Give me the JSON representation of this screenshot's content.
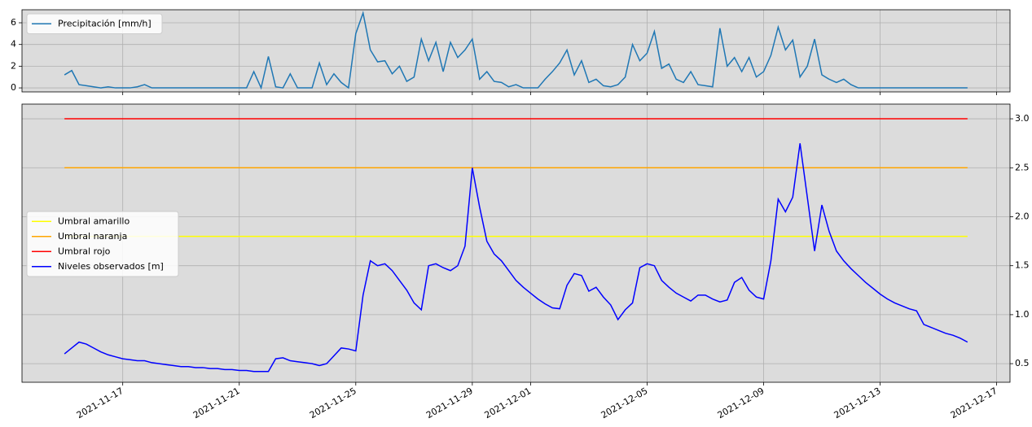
{
  "chart_data": [
    {
      "type": "line",
      "x": [
        "2021-11-15 00:00",
        "2021-11-15 06:00",
        "2021-11-15 12:00",
        "2021-11-15 18:00",
        "2021-11-16 00:00",
        "2021-11-16 06:00",
        "2021-11-16 12:00",
        "2021-11-16 18:00",
        "2021-11-17 00:00",
        "2021-11-17 06:00",
        "2021-11-17 12:00",
        "2021-11-17 18:00",
        "2021-11-18 00:00",
        "2021-11-18 06:00",
        "2021-11-18 12:00",
        "2021-11-18 18:00",
        "2021-11-19 00:00",
        "2021-11-19 06:00",
        "2021-11-19 12:00",
        "2021-11-19 18:00",
        "2021-11-20 00:00",
        "2021-11-20 06:00",
        "2021-11-20 12:00",
        "2021-11-20 18:00",
        "2021-11-21 00:00",
        "2021-11-21 06:00",
        "2021-11-21 12:00",
        "2021-11-21 18:00",
        "2021-11-22 00:00",
        "2021-11-22 06:00",
        "2021-11-22 12:00",
        "2021-11-22 18:00",
        "2021-11-23 00:00",
        "2021-11-23 06:00",
        "2021-11-23 12:00",
        "2021-11-23 18:00",
        "2021-11-24 00:00",
        "2021-11-24 06:00",
        "2021-11-24 12:00",
        "2021-11-24 18:00",
        "2021-11-25 00:00",
        "2021-11-25 06:00",
        "2021-11-25 12:00",
        "2021-11-25 18:00",
        "2021-11-26 00:00",
        "2021-11-26 06:00",
        "2021-11-26 12:00",
        "2021-11-26 18:00",
        "2021-11-27 00:00",
        "2021-11-27 06:00",
        "2021-11-27 12:00",
        "2021-11-27 18:00",
        "2021-11-28 00:00",
        "2021-11-28 06:00",
        "2021-11-28 12:00",
        "2021-11-28 18:00",
        "2021-11-29 00:00",
        "2021-11-29 06:00",
        "2021-11-29 12:00",
        "2021-11-29 18:00",
        "2021-11-30 00:00",
        "2021-11-30 06:00",
        "2021-11-30 12:00",
        "2021-11-30 18:00",
        "2021-12-01 00:00",
        "2021-12-01 06:00",
        "2021-12-01 12:00",
        "2021-12-01 18:00",
        "2021-12-02 00:00",
        "2021-12-02 06:00",
        "2021-12-02 12:00",
        "2021-12-02 18:00",
        "2021-12-03 00:00",
        "2021-12-03 06:00",
        "2021-12-03 12:00",
        "2021-12-03 18:00",
        "2021-12-04 00:00",
        "2021-12-04 06:00",
        "2021-12-04 12:00",
        "2021-12-04 18:00",
        "2021-12-05 00:00",
        "2021-12-05 06:00",
        "2021-12-05 12:00",
        "2021-12-05 18:00",
        "2021-12-06 00:00",
        "2021-12-06 06:00",
        "2021-12-06 12:00",
        "2021-12-06 18:00",
        "2021-12-07 00:00",
        "2021-12-07 06:00",
        "2021-12-07 12:00",
        "2021-12-07 18:00",
        "2021-12-08 00:00",
        "2021-12-08 06:00",
        "2021-12-08 12:00",
        "2021-12-08 18:00",
        "2021-12-09 00:00",
        "2021-12-09 06:00",
        "2021-12-09 12:00",
        "2021-12-09 18:00",
        "2021-12-10 00:00",
        "2021-12-10 06:00",
        "2021-12-10 12:00",
        "2021-12-10 18:00",
        "2021-12-11 00:00",
        "2021-12-11 06:00",
        "2021-12-11 12:00",
        "2021-12-11 18:00",
        "2021-12-12 00:00",
        "2021-12-12 06:00",
        "2021-12-12 12:00",
        "2021-12-12 18:00",
        "2021-12-13 00:00",
        "2021-12-13 06:00",
        "2021-12-13 12:00",
        "2021-12-13 18:00",
        "2021-12-14 00:00",
        "2021-12-14 06:00",
        "2021-12-14 12:00",
        "2021-12-14 18:00",
        "2021-12-15 00:00",
        "2021-12-15 06:00",
        "2021-12-15 12:00",
        "2021-12-15 18:00",
        "2021-12-16 00:00"
      ],
      "series": [
        {
          "name": "Precipitación [mm/h]",
          "color": "#1f77b4",
          "values": [
            1.2,
            1.6,
            0.3,
            0.2,
            0.1,
            0,
            0.1,
            0,
            0,
            0,
            0.1,
            0.3,
            0,
            0,
            0,
            0,
            0,
            0,
            0,
            0,
            0,
            0,
            0,
            0,
            0,
            0,
            1.5,
            0,
            2.9,
            0.1,
            0,
            1.3,
            0,
            0,
            0,
            2.3,
            0.3,
            1.3,
            0.5,
            0,
            5,
            6.9,
            3.5,
            2.4,
            2.5,
            1.3,
            2,
            0.6,
            1,
            4.5,
            2.5,
            4.2,
            1.5,
            4.2,
            2.8,
            3.5,
            4.5,
            0.8,
            1.5,
            0.6,
            0.5,
            0.1,
            0.3,
            0,
            0,
            0,
            0.8,
            1.5,
            2.3,
            3.5,
            1.2,
            2.5,
            0.5,
            0.8,
            0.2,
            0.1,
            0.3,
            1,
            4,
            2.5,
            3.2,
            5.2,
            1.8,
            2.2,
            0.8,
            0.5,
            1.5,
            0.3,
            0.2,
            0.1,
            5.5,
            2,
            2.8,
            1.5,
            2.8,
            1,
            1.5,
            3,
            5.6,
            3.5,
            4.4,
            1,
            2,
            4.5,
            1.2,
            0.8,
            0.5,
            0.8,
            0.3,
            0,
            0,
            0,
            0,
            0,
            0,
            0,
            0,
            0,
            0,
            0,
            0,
            0,
            0,
            0,
            0
          ]
        }
      ],
      "xlim": [
        "2021-11-13 13:00",
        "2021-12-17 11:00"
      ],
      "xticks": [
        "2021-11-17",
        "2021-11-21",
        "2021-11-25",
        "2021-11-29",
        "2021-12-01",
        "2021-12-05",
        "2021-12-09",
        "2021-12-13",
        "2021-12-17"
      ],
      "xtick_labels": false,
      "ylim": [
        -0.37,
        7.2
      ],
      "yticks": [
        0,
        2,
        4,
        6
      ],
      "y_side": "left",
      "grid": true,
      "legend": "upper left",
      "background": "#dcdcdc"
    },
    {
      "type": "line",
      "x": [
        "2021-11-15 00:00",
        "2021-11-15 06:00",
        "2021-11-15 12:00",
        "2021-11-15 18:00",
        "2021-11-16 00:00",
        "2021-11-16 06:00",
        "2021-11-16 12:00",
        "2021-11-16 18:00",
        "2021-11-17 00:00",
        "2021-11-17 06:00",
        "2021-11-17 12:00",
        "2021-11-17 18:00",
        "2021-11-18 00:00",
        "2021-11-18 06:00",
        "2021-11-18 12:00",
        "2021-11-18 18:00",
        "2021-11-19 00:00",
        "2021-11-19 06:00",
        "2021-11-19 12:00",
        "2021-11-19 18:00",
        "2021-11-20 00:00",
        "2021-11-20 06:00",
        "2021-11-20 12:00",
        "2021-11-20 18:00",
        "2021-11-21 00:00",
        "2021-11-21 06:00",
        "2021-11-21 12:00",
        "2021-11-21 18:00",
        "2021-11-22 00:00",
        "2021-11-22 06:00",
        "2021-11-22 12:00",
        "2021-11-22 18:00",
        "2021-11-23 00:00",
        "2021-11-23 06:00",
        "2021-11-23 12:00",
        "2021-11-23 18:00",
        "2021-11-24 00:00",
        "2021-11-24 06:00",
        "2021-11-24 12:00",
        "2021-11-24 18:00",
        "2021-11-25 00:00",
        "2021-11-25 06:00",
        "2021-11-25 12:00",
        "2021-11-25 18:00",
        "2021-11-26 00:00",
        "2021-11-26 06:00",
        "2021-11-26 12:00",
        "2021-11-26 18:00",
        "2021-11-27 00:00",
        "2021-11-27 06:00",
        "2021-11-27 12:00",
        "2021-11-27 18:00",
        "2021-11-28 00:00",
        "2021-11-28 06:00",
        "2021-11-28 12:00",
        "2021-11-28 18:00",
        "2021-11-29 00:00",
        "2021-11-29 06:00",
        "2021-11-29 12:00",
        "2021-11-29 18:00",
        "2021-11-30 00:00",
        "2021-11-30 06:00",
        "2021-11-30 12:00",
        "2021-11-30 18:00",
        "2021-12-01 00:00",
        "2021-12-01 06:00",
        "2021-12-01 12:00",
        "2021-12-01 18:00",
        "2021-12-02 00:00",
        "2021-12-02 06:00",
        "2021-12-02 12:00",
        "2021-12-02 18:00",
        "2021-12-03 00:00",
        "2021-12-03 06:00",
        "2021-12-03 12:00",
        "2021-12-03 18:00",
        "2021-12-04 00:00",
        "2021-12-04 06:00",
        "2021-12-04 12:00",
        "2021-12-04 18:00",
        "2021-12-05 00:00",
        "2021-12-05 06:00",
        "2021-12-05 12:00",
        "2021-12-05 18:00",
        "2021-12-06 00:00",
        "2021-12-06 06:00",
        "2021-12-06 12:00",
        "2021-12-06 18:00",
        "2021-12-07 00:00",
        "2021-12-07 06:00",
        "2021-12-07 12:00",
        "2021-12-07 18:00",
        "2021-12-08 00:00",
        "2021-12-08 06:00",
        "2021-12-08 12:00",
        "2021-12-08 18:00",
        "2021-12-09 00:00",
        "2021-12-09 06:00",
        "2021-12-09 12:00",
        "2021-12-09 18:00",
        "2021-12-10 00:00",
        "2021-12-10 06:00",
        "2021-12-10 12:00",
        "2021-12-10 18:00",
        "2021-12-11 00:00",
        "2021-12-11 06:00",
        "2021-12-11 12:00",
        "2021-12-11 18:00",
        "2021-12-12 00:00",
        "2021-12-12 06:00",
        "2021-12-12 12:00",
        "2021-12-12 18:00",
        "2021-12-13 00:00",
        "2021-12-13 06:00",
        "2021-12-13 12:00",
        "2021-12-13 18:00",
        "2021-12-14 00:00",
        "2021-12-14 06:00",
        "2021-12-14 12:00",
        "2021-12-14 18:00",
        "2021-12-15 00:00",
        "2021-12-15 06:00",
        "2021-12-15 12:00",
        "2021-12-15 18:00",
        "2021-12-16 00:00"
      ],
      "series": [
        {
          "name": "Umbral amarillo",
          "color": "#ffff00",
          "x": [
            "2021-11-15 00:00",
            "2021-12-16 00:00"
          ],
          "values": [
            1.8,
            1.8
          ]
        },
        {
          "name": "Umbral naranja",
          "color": "#ffa500",
          "x": [
            "2021-11-15 00:00",
            "2021-12-16 00:00"
          ],
          "values": [
            2.5,
            2.5
          ]
        },
        {
          "name": "Umbral rojo",
          "color": "#ff0000",
          "x": [
            "2021-11-15 00:00",
            "2021-12-16 00:00"
          ],
          "values": [
            3,
            3
          ]
        },
        {
          "name": "Niveles observados [m]",
          "color": "#0000ff",
          "values": [
            0.6,
            0.66,
            0.72,
            0.7,
            0.66,
            0.62,
            0.59,
            0.57,
            0.55,
            0.54,
            0.53,
            0.53,
            0.51,
            0.5,
            0.49,
            0.48,
            0.47,
            0.47,
            0.46,
            0.46,
            0.45,
            0.45,
            0.44,
            0.44,
            0.43,
            0.43,
            0.42,
            0.42,
            0.42,
            0.55,
            0.56,
            0.53,
            0.52,
            0.51,
            0.5,
            0.48,
            0.5,
            0.58,
            0.66,
            0.65,
            0.63,
            1.2,
            1.55,
            1.5,
            1.52,
            1.45,
            1.35,
            1.25,
            1.12,
            1.05,
            1.5,
            1.52,
            1.48,
            1.45,
            1.5,
            1.7,
            2.5,
            2.1,
            1.75,
            1.62,
            1.55,
            1.45,
            1.35,
            1.28,
            1.22,
            1.16,
            1.11,
            1.07,
            1.06,
            1.3,
            1.42,
            1.4,
            1.24,
            1.28,
            1.18,
            1.1,
            0.95,
            1.05,
            1.12,
            1.48,
            1.52,
            1.5,
            1.35,
            1.28,
            1.22,
            1.18,
            1.14,
            1.2,
            1.2,
            1.16,
            1.13,
            1.15,
            1.33,
            1.38,
            1.25,
            1.18,
            1.16,
            1.55,
            2.18,
            2.05,
            2.2,
            2.75,
            2.2,
            1.65,
            2.12,
            1.85,
            1.65,
            1.55,
            1.47,
            1.4,
            1.33,
            1.27,
            1.21,
            1.16,
            1.12,
            1.09,
            1.06,
            1.04,
            0.9,
            0.87,
            0.84,
            0.81,
            0.79,
            0.76,
            0.72
          ]
        }
      ],
      "xlim": [
        "2021-11-13 13:00",
        "2021-12-17 11:00"
      ],
      "xticks": [
        "2021-11-17",
        "2021-11-21",
        "2021-11-25",
        "2021-11-29",
        "2021-12-01",
        "2021-12-05",
        "2021-12-09",
        "2021-12-13",
        "2021-12-17"
      ],
      "xtick_labels": true,
      "ylim": [
        0.31,
        3.15
      ],
      "yticks": [
        0.5,
        {
          "value": 1,
          "label": "1.0"
        },
        1.5,
        {
          "value": 2,
          "label": "2.0"
        },
        2.5,
        {
          "value": 3,
          "label": "3.0"
        }
      ],
      "y_side": "right",
      "grid": true,
      "legend": "center left",
      "background": "#dcdcdc"
    }
  ]
}
